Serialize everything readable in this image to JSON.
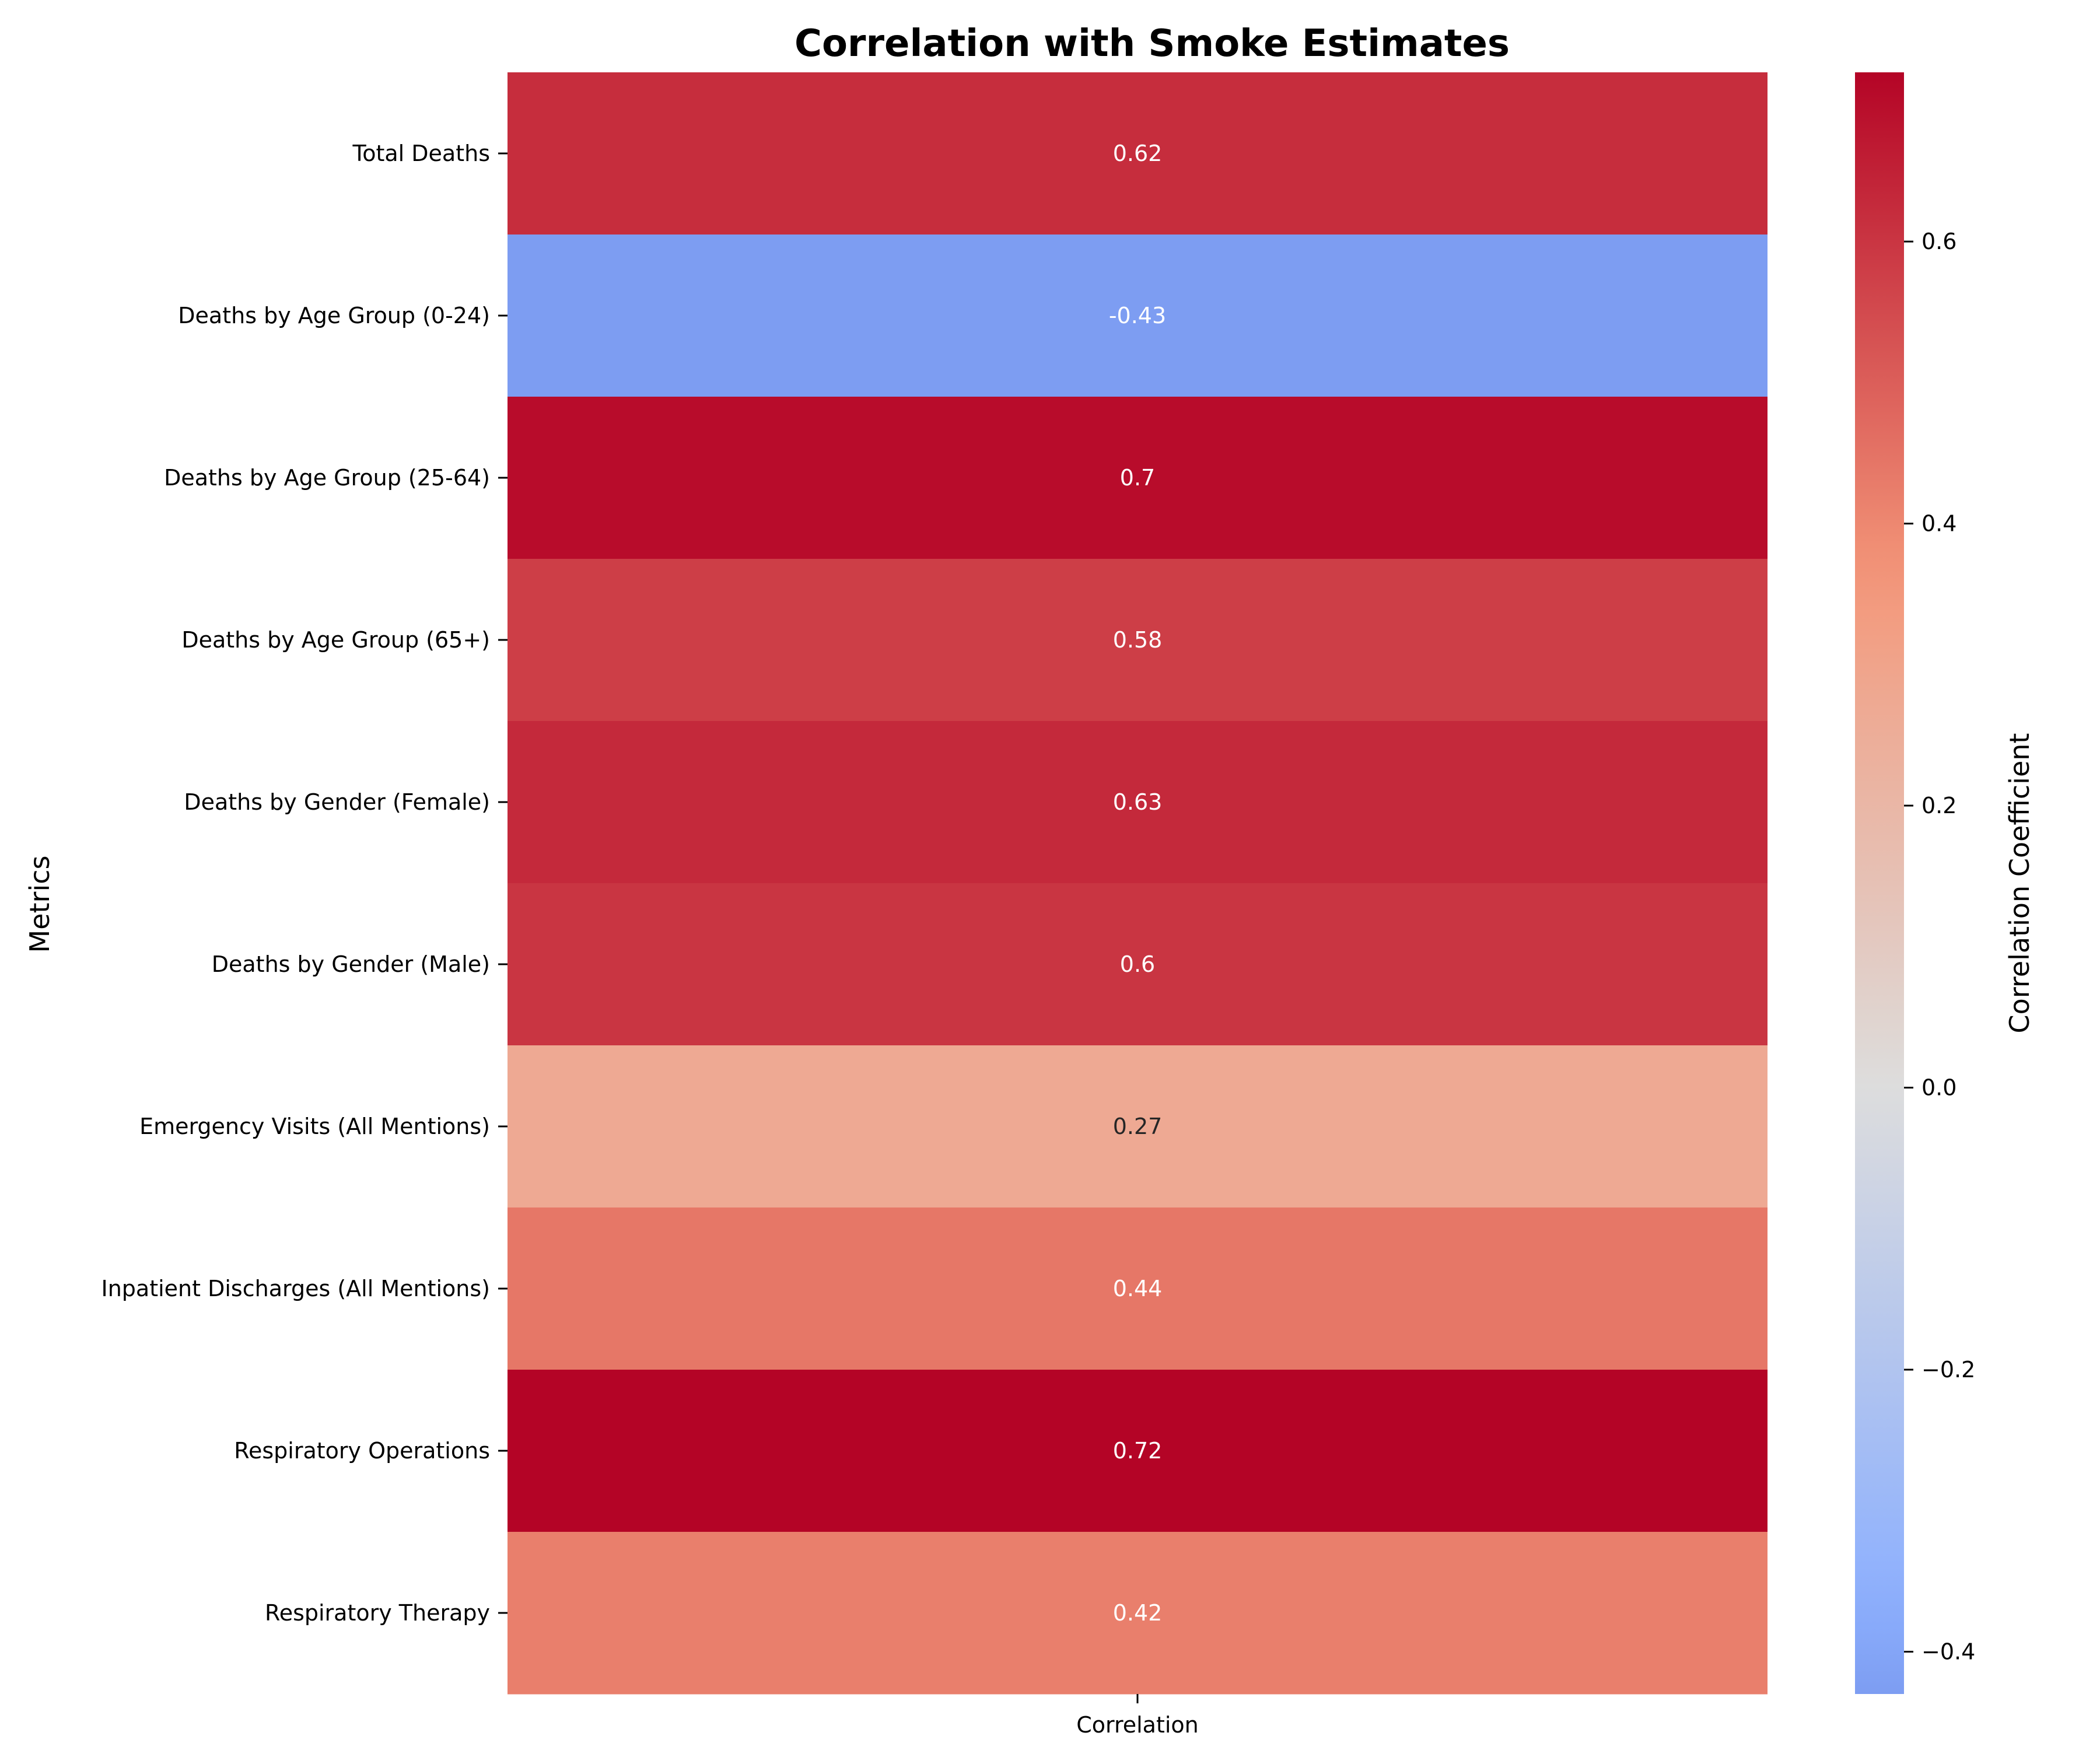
{
  "chart_data": {
    "type": "heatmap",
    "title": "Correlation with Smoke Estimates",
    "ylabel": "Metrics",
    "columns": [
      "Correlation"
    ],
    "rows": [
      {
        "label": "Total Deaths",
        "value": 0.62,
        "text": "0.62"
      },
      {
        "label": "Deaths by Age Group (0-24)",
        "value": -0.43,
        "text": "-0.43"
      },
      {
        "label": "Deaths by Age Group (25-64)",
        "value": 0.7,
        "text": "0.7"
      },
      {
        "label": "Deaths by Age Group (65+)",
        "value": 0.58,
        "text": "0.58"
      },
      {
        "label": "Deaths by Gender (Female)",
        "value": 0.63,
        "text": "0.63"
      },
      {
        "label": "Deaths by Gender (Male)",
        "value": 0.6,
        "text": "0.6"
      },
      {
        "label": "Emergency Visits (All Mentions)",
        "value": 0.27,
        "text": "0.27"
      },
      {
        "label": "Inpatient Discharges (All Mentions)",
        "value": 0.44,
        "text": "0.44"
      },
      {
        "label": "Respiratory Operations",
        "value": 0.72,
        "text": "0.72"
      },
      {
        "label": "Respiratory Therapy",
        "value": 0.42,
        "text": "0.42"
      }
    ],
    "colormap": "coolwarm",
    "colorbar": {
      "label": "Correlation Coefficient",
      "range": [
        -0.43,
        0.72
      ],
      "ticks": [
        -0.4,
        -0.2,
        0.0,
        0.2,
        0.4,
        0.6
      ],
      "tick_labels": [
        "−0.4",
        "−0.2",
        "0.0",
        "0.2",
        "0.4",
        "0.6"
      ]
    }
  }
}
